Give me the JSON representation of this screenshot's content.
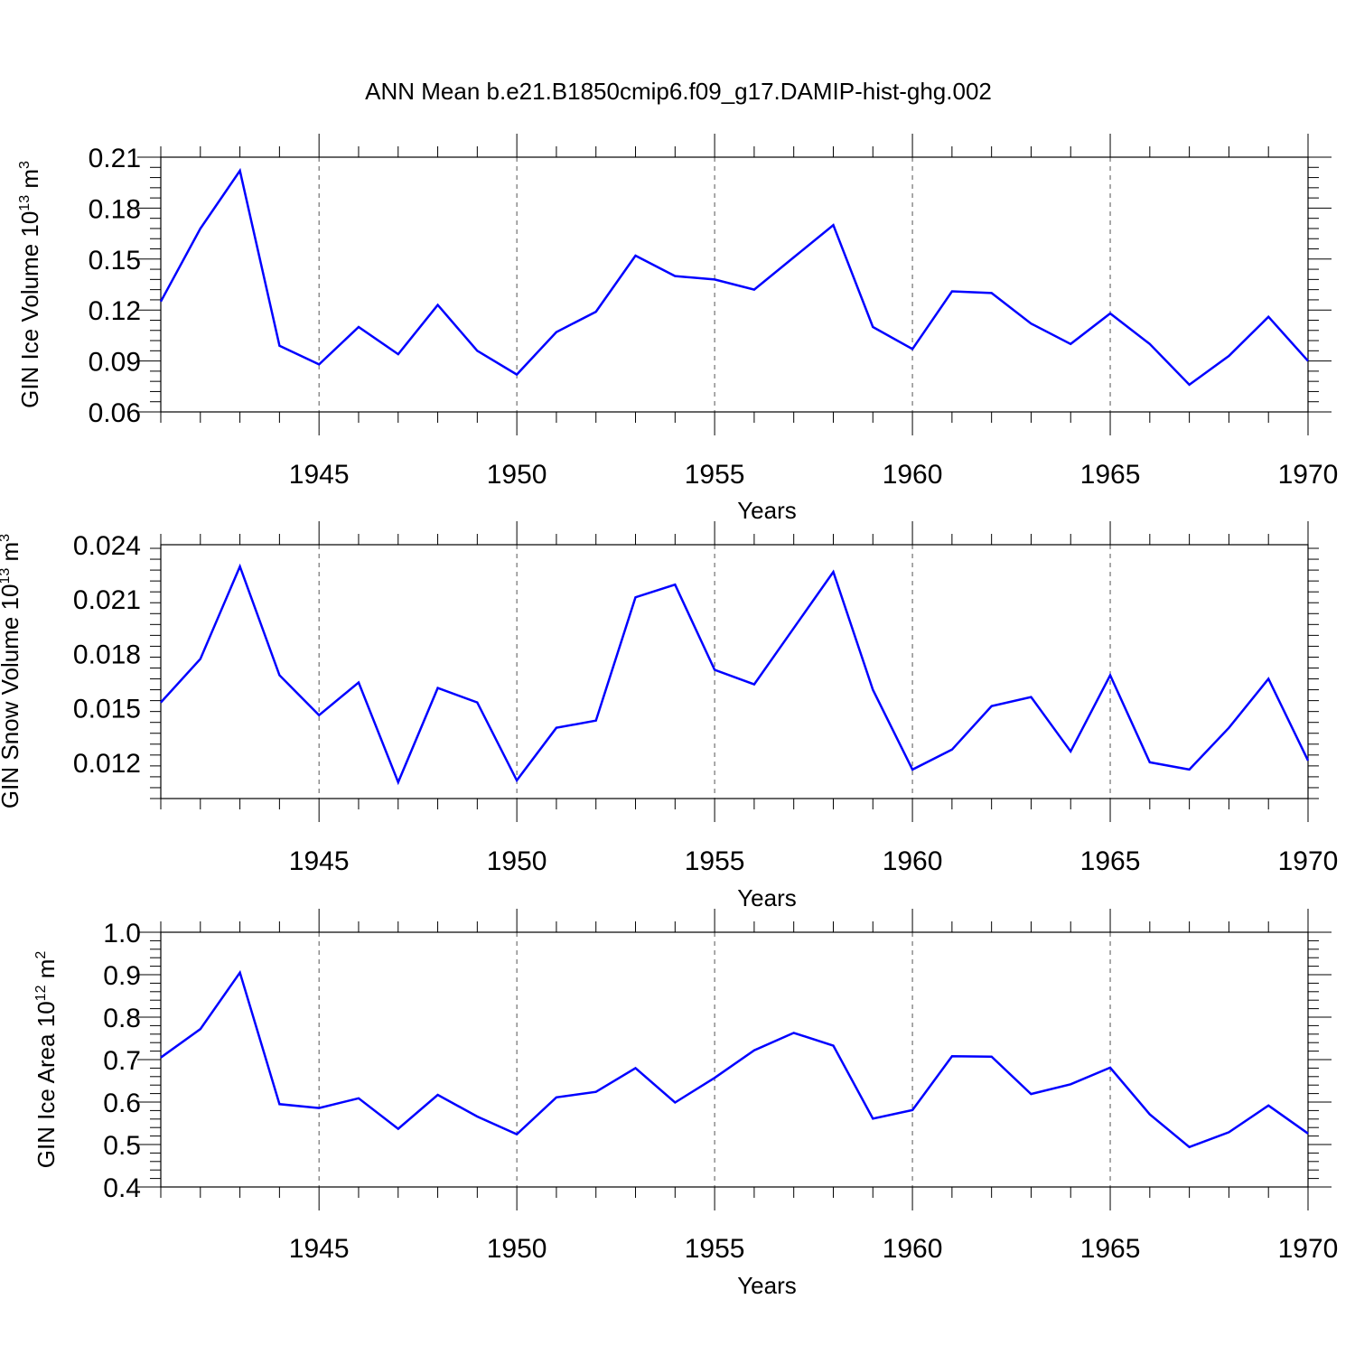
{
  "figure": {
    "title": "ANN Mean b.e21.B1850cmip6.f09_g17.DAMIP-hist-ghg.002"
  },
  "colors": {
    "line": "#0000ff",
    "axis": "#000000",
    "grid": "#555555"
  },
  "chart_data": [
    {
      "type": "line",
      "ylabel_main": "GIN Ice Volume 10",
      "ylabel_exp": "13",
      "ylabel_unit": "m",
      "ylabel_unit_exp": "3",
      "xlabel": "Years",
      "xlim": [
        1941,
        1970
      ],
      "ylim": [
        0.06,
        0.21
      ],
      "yticks": [
        0.06,
        0.09,
        0.12,
        0.15,
        0.18,
        0.21
      ],
      "ytick_labels": [
        "0.06",
        "0.09",
        "0.12",
        "0.15",
        "0.18",
        "0.21"
      ],
      "xticks": [
        1945,
        1950,
        1955,
        1960,
        1965,
        1970
      ],
      "xtick_labels": [
        "1945",
        "1950",
        "1955",
        "1960",
        "1965",
        "1970"
      ],
      "grid": "vertical dashed at major x ticks",
      "x": [
        1941,
        1942,
        1943,
        1944,
        1945,
        1946,
        1947,
        1948,
        1949,
        1950,
        1951,
        1952,
        1953,
        1954,
        1955,
        1956,
        1957,
        1958,
        1959,
        1960,
        1961,
        1962,
        1963,
        1964,
        1965,
        1966,
        1967,
        1968,
        1969,
        1970
      ],
      "values": [
        0.125,
        0.168,
        0.202,
        0.099,
        0.088,
        0.11,
        0.094,
        0.123,
        0.096,
        0.082,
        0.107,
        0.119,
        0.152,
        0.14,
        0.138,
        0.132,
        0.151,
        0.17,
        0.11,
        0.097,
        0.131,
        0.13,
        0.112,
        0.1,
        0.118,
        0.1,
        0.076,
        0.093,
        0.116,
        0.09
      ]
    },
    {
      "type": "line",
      "ylabel_main": "GIN Snow Volume 10",
      "ylabel_exp": "13",
      "ylabel_unit": "m",
      "ylabel_unit_exp": "3",
      "xlabel": "Years",
      "xlim": [
        1941,
        1970
      ],
      "ylim": [
        0.01,
        0.024
      ],
      "yticks": [
        0.012,
        0.015,
        0.018,
        0.021,
        0.024
      ],
      "ytick_labels": [
        "0.012",
        "0.015",
        "0.018",
        "0.021",
        "0.024"
      ],
      "xticks": [
        1945,
        1950,
        1955,
        1960,
        1965,
        1970
      ],
      "xtick_labels": [
        "1945",
        "1950",
        "1955",
        "1960",
        "1965",
        "1970"
      ],
      "grid": "vertical dashed at major x ticks",
      "x": [
        1941,
        1942,
        1943,
        1944,
        1945,
        1946,
        1947,
        1948,
        1949,
        1950,
        1951,
        1952,
        1953,
        1954,
        1955,
        1956,
        1957,
        1958,
        1959,
        1960,
        1961,
        1962,
        1963,
        1964,
        1965,
        1966,
        1967,
        1968,
        1969,
        1970
      ],
      "values": [
        0.0153,
        0.0177,
        0.0228,
        0.0168,
        0.0146,
        0.0164,
        0.0109,
        0.0161,
        0.0153,
        0.011,
        0.0139,
        0.0143,
        0.0211,
        0.0218,
        0.0171,
        0.0163,
        0.0194,
        0.0225,
        0.016,
        0.0116,
        0.0127,
        0.0151,
        0.0156,
        0.0126,
        0.0168,
        0.012,
        0.0116,
        0.0139,
        0.0166,
        0.0121
      ]
    },
    {
      "type": "line",
      "ylabel_main": "GIN Ice Area 10",
      "ylabel_exp": "12",
      "ylabel_unit": "m",
      "ylabel_unit_exp": "2",
      "xlabel": "Years",
      "xlim": [
        1941,
        1970
      ],
      "ylim": [
        0.4,
        1.0
      ],
      "yticks": [
        0.4,
        0.5,
        0.6,
        0.7,
        0.8,
        0.9,
        1.0
      ],
      "ytick_labels": [
        "0.4",
        "0.5",
        "0.6",
        "0.7",
        "0.8",
        "0.9",
        "1.0"
      ],
      "xticks": [
        1945,
        1950,
        1955,
        1960,
        1965,
        1970
      ],
      "xtick_labels": [
        "1945",
        "1950",
        "1955",
        "1960",
        "1965",
        "1970"
      ],
      "grid": "vertical dashed at major x ticks",
      "x": [
        1941,
        1942,
        1943,
        1944,
        1945,
        1946,
        1947,
        1948,
        1949,
        1950,
        1951,
        1952,
        1953,
        1954,
        1955,
        1956,
        1957,
        1958,
        1959,
        1960,
        1961,
        1962,
        1963,
        1964,
        1965,
        1966,
        1967,
        1968,
        1969,
        1970
      ],
      "values": [
        0.705,
        0.772,
        0.905,
        0.595,
        0.586,
        0.609,
        0.537,
        0.617,
        0.566,
        0.524,
        0.611,
        0.624,
        0.68,
        0.599,
        0.657,
        0.722,
        0.763,
        0.733,
        0.561,
        0.581,
        0.708,
        0.707,
        0.619,
        0.642,
        0.681,
        0.571,
        0.494,
        0.529,
        0.592,
        0.526
      ]
    }
  ]
}
